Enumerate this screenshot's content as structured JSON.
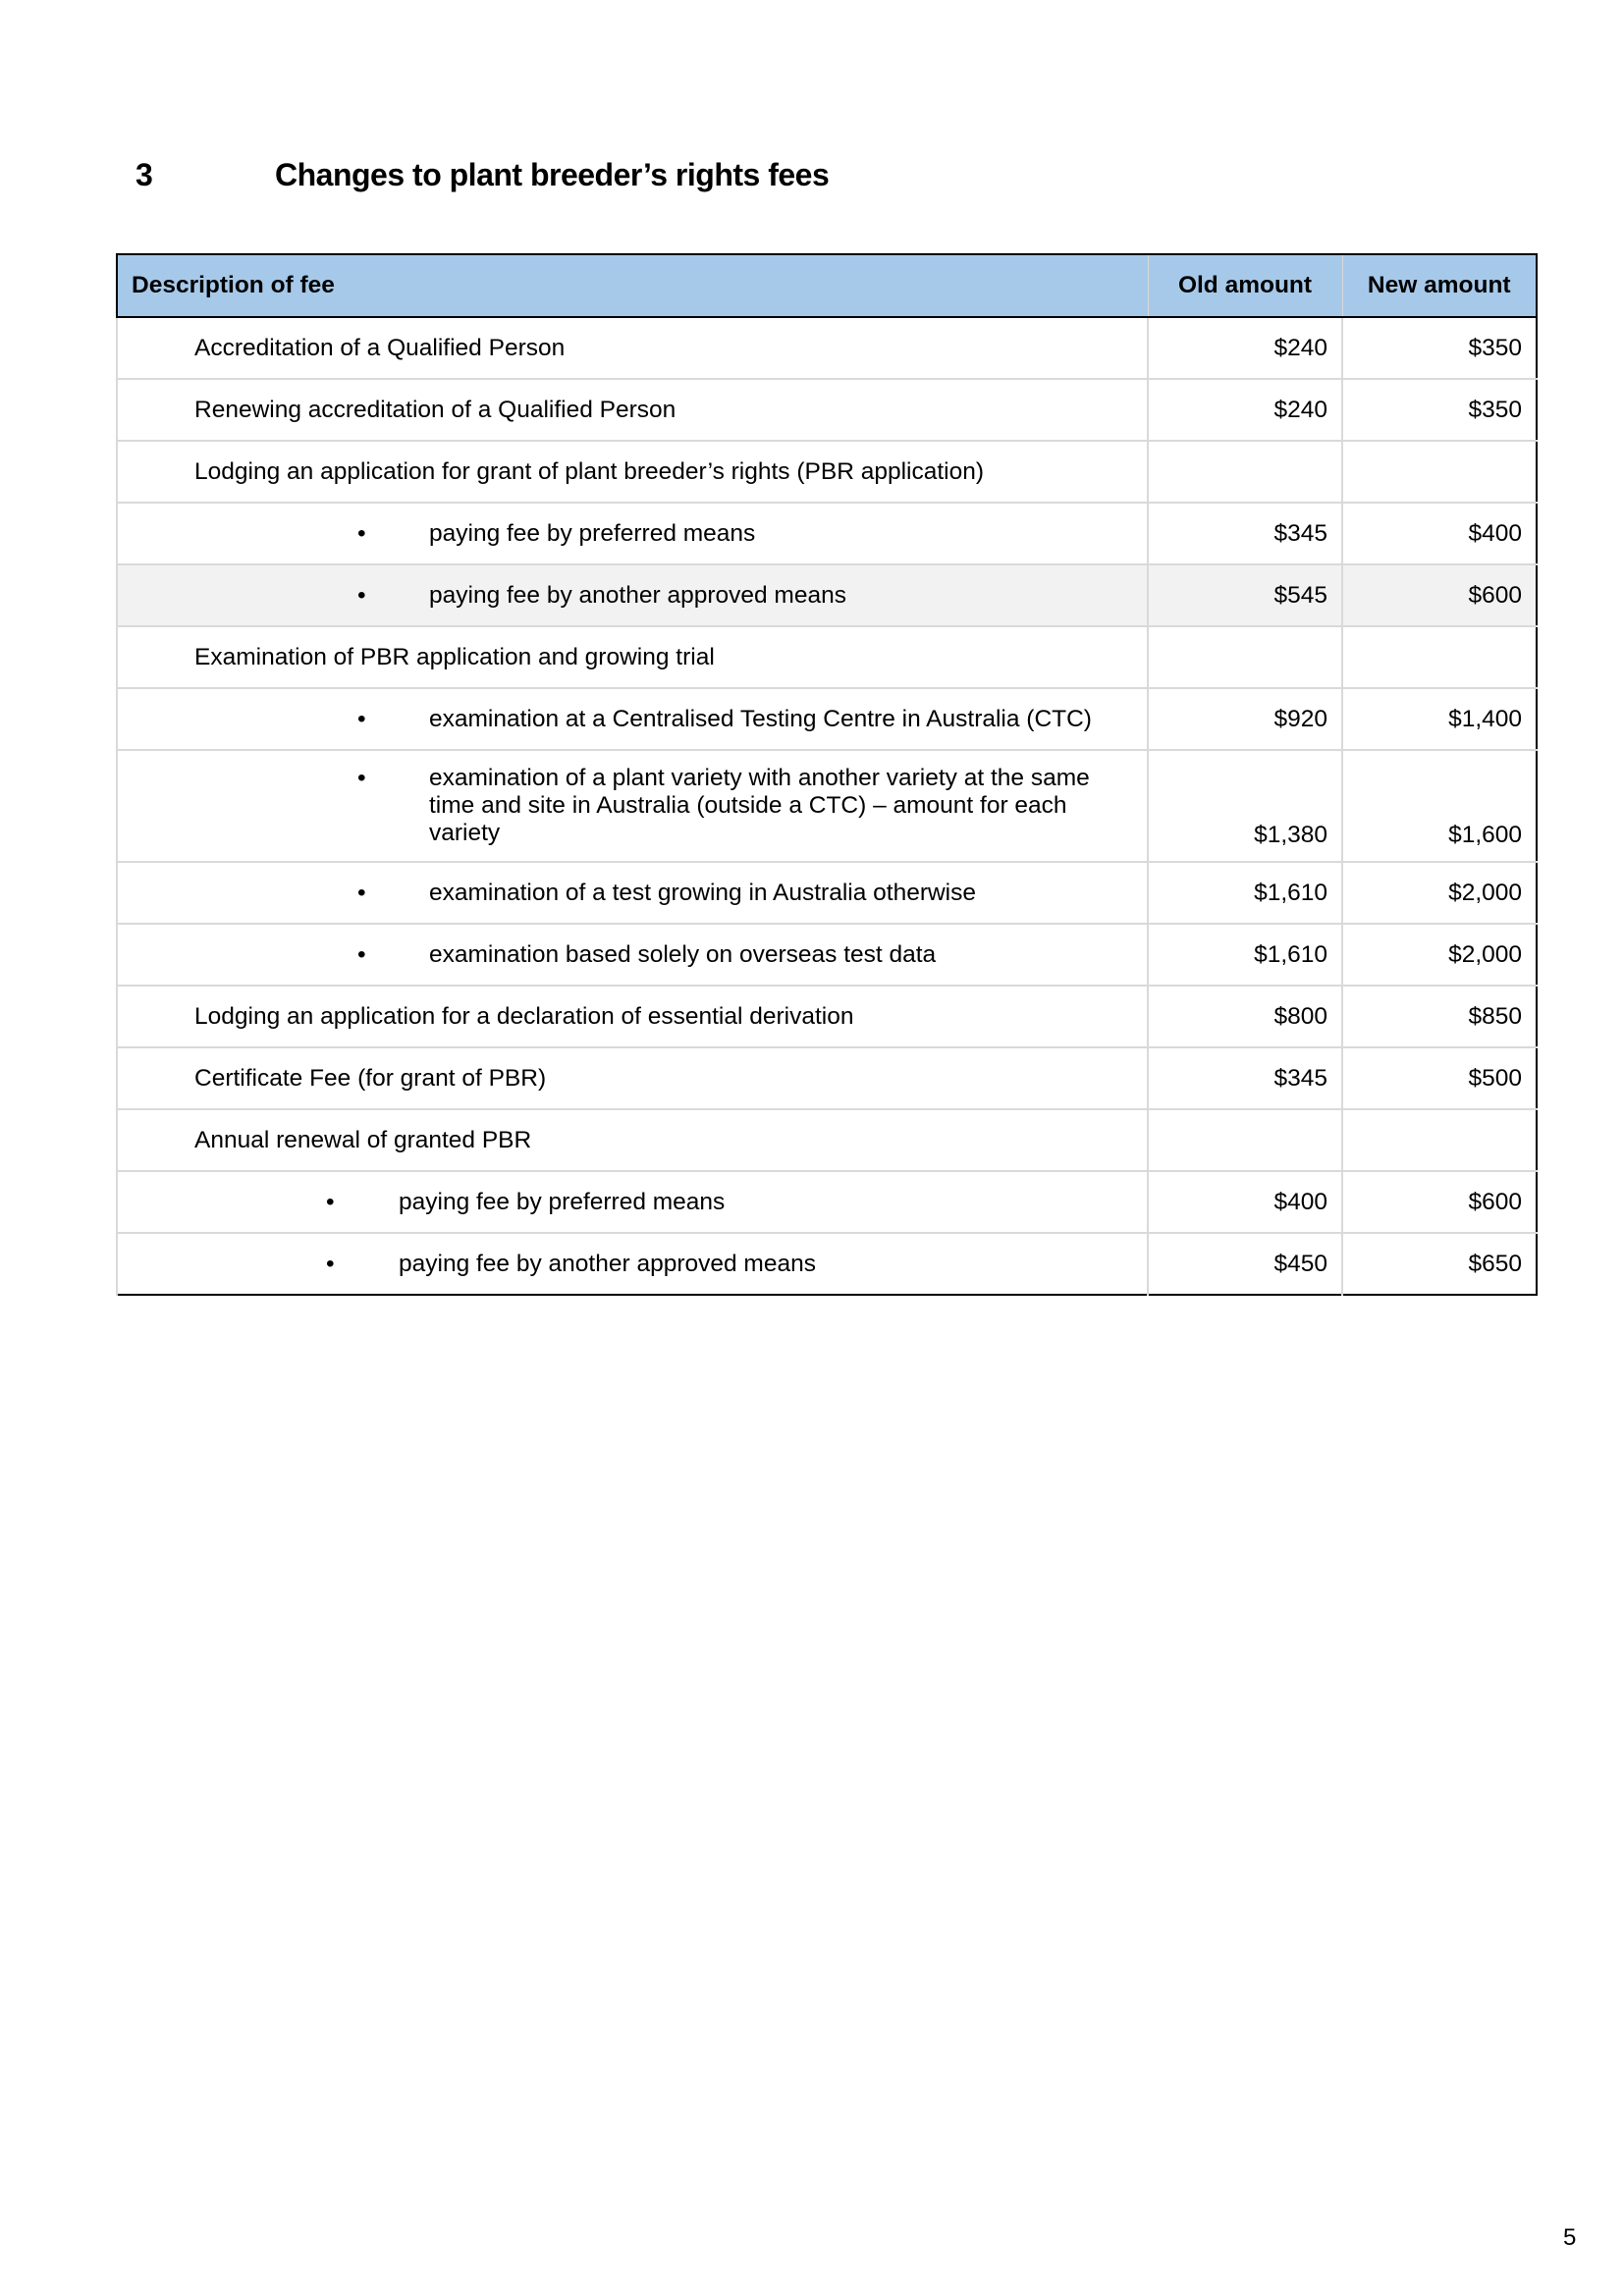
{
  "section": {
    "number": "3",
    "title": "Changes to plant breeder’s rights fees"
  },
  "table": {
    "headers": [
      "Description of fee",
      "Old amount",
      "New amount"
    ],
    "rows": [
      {
        "description": "Accreditation of a Qualified Person",
        "old": "$240",
        "new": "$350"
      },
      {
        "description": "Renewing accreditation of a Qualified Person",
        "old": "$240",
        "new": "$350"
      },
      {
        "description": "Lodging an application for grant of plant breeder’s rights (PBR application)",
        "old": "",
        "new": ""
      },
      {
        "description": "paying fee by preferred means",
        "old": "$345",
        "new": "$400"
      },
      {
        "description": "paying fee by another approved means",
        "old": "$545",
        "new": "$600"
      },
      {
        "description": "Examination of PBR application and growing trial",
        "old": "",
        "new": ""
      },
      {
        "description": "examination at a Centralised Testing Centre in Australia (CTC)",
        "old": "$920",
        "new": "$1,400"
      },
      {
        "description": "examination of a plant variety with another variety at the same time and site in Australia (outside a CTC) – amount for each variety",
        "old": "$1,380",
        "new": "$1,600"
      },
      {
        "description": "examination of a test growing in Australia otherwise",
        "old": "$1,610",
        "new": "$2,000"
      },
      {
        "description": "examination based solely on overseas test data",
        "old": "$1,610",
        "new": "$2,000"
      },
      {
        "description": "Lodging an application for a declaration of essential derivation",
        "old": "$800",
        "new": "$850"
      },
      {
        "description": "Certificate Fee (for grant of PBR)",
        "old": "$345",
        "new": "$500"
      },
      {
        "description": "Annual renewal of granted PBR",
        "old": "",
        "new": ""
      },
      {
        "description": "paying fee by preferred means",
        "old": "$400",
        "new": "$600"
      },
      {
        "description": "paying fee by another approved means",
        "old": "$450",
        "new": "$650"
      }
    ],
    "bullet": "•"
  },
  "page_number": "5"
}
